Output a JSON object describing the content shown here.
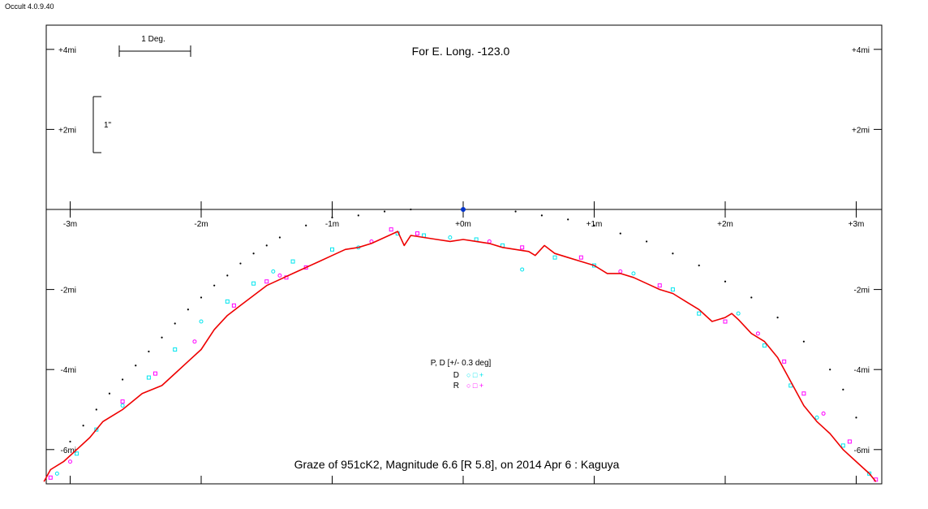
{
  "app": {
    "title": "Occult 4.0.9.40"
  },
  "chart_data": {
    "type": "line",
    "title": "Graze of  951cK2,  Magnitude 6.6 [R 5.8],  on 2014 Apr  6  :  Kaguya",
    "subtitle": "For E. Long. -123.0",
    "scale_bars": {
      "angle": "1 Deg.",
      "arcsec": "1\""
    },
    "x_ticks": [
      {
        "v": -3,
        "label": "-3m"
      },
      {
        "v": -2,
        "label": "-2m"
      },
      {
        "v": -1,
        "label": "-1m"
      },
      {
        "v": 0,
        "label": "+0m"
      },
      {
        "v": 1,
        "label": "+1m"
      },
      {
        "v": 2,
        "label": "+2m"
      },
      {
        "v": 3,
        "label": "+3m"
      }
    ],
    "y_ticks": [
      {
        "v": 4,
        "label": "+4mi"
      },
      {
        "v": 2,
        "label": "+2mi"
      },
      {
        "v": -2,
        "label": "-2mi"
      },
      {
        "v": -4,
        "label": "-4mi"
      },
      {
        "v": -6,
        "label": "-6mi"
      }
    ],
    "xlim": [
      -3.2,
      3.2
    ],
    "ylim": [
      -6.8,
      4.6
    ],
    "star_position": [
      0,
      0
    ],
    "legend": {
      "title": "P, D [+/- 0.3 deg]",
      "entries": [
        {
          "label": "D",
          "symbols": "○ □ +",
          "color": "#00e5ee"
        },
        {
          "label": "R",
          "symbols": "○ □ +",
          "color": "#ff00ff"
        }
      ]
    },
    "colors": {
      "profile": "#ee0000",
      "star": "#0033cc",
      "D": "#00e5ee",
      "R": "#ff00ff"
    },
    "series": [
      {
        "type": "line",
        "data": [
          [
            -3.2,
            -6.8
          ],
          [
            -3.15,
            -6.5
          ],
          [
            -3.05,
            -6.3
          ],
          [
            -2.95,
            -6.0
          ],
          [
            -2.85,
            -5.7
          ],
          [
            -2.75,
            -5.3
          ],
          [
            -2.6,
            -5.0
          ],
          [
            -2.45,
            -4.6
          ],
          [
            -2.3,
            -4.4
          ],
          [
            -2.2,
            -4.1
          ],
          [
            -2.1,
            -3.8
          ],
          [
            -2.0,
            -3.5
          ],
          [
            -1.9,
            -3.0
          ],
          [
            -1.8,
            -2.65
          ],
          [
            -1.7,
            -2.4
          ],
          [
            -1.6,
            -2.15
          ],
          [
            -1.5,
            -1.9
          ],
          [
            -1.4,
            -1.75
          ],
          [
            -1.3,
            -1.6
          ],
          [
            -1.2,
            -1.45
          ],
          [
            -1.1,
            -1.3
          ],
          [
            -1.0,
            -1.15
          ],
          [
            -0.9,
            -1.0
          ],
          [
            -0.8,
            -0.95
          ],
          [
            -0.7,
            -0.85
          ],
          [
            -0.6,
            -0.7
          ],
          [
            -0.5,
            -0.55
          ],
          [
            -0.45,
            -0.9
          ],
          [
            -0.4,
            -0.65
          ],
          [
            -0.3,
            -0.7
          ],
          [
            -0.2,
            -0.75
          ],
          [
            -0.1,
            -0.8
          ],
          [
            0.0,
            -0.75
          ],
          [
            0.1,
            -0.8
          ],
          [
            0.2,
            -0.85
          ],
          [
            0.3,
            -0.95
          ],
          [
            0.4,
            -1.0
          ],
          [
            0.5,
            -1.05
          ],
          [
            0.55,
            -1.15
          ],
          [
            0.62,
            -0.9
          ],
          [
            0.7,
            -1.1
          ],
          [
            0.8,
            -1.2
          ],
          [
            0.9,
            -1.3
          ],
          [
            1.0,
            -1.4
          ],
          [
            1.1,
            -1.6
          ],
          [
            1.2,
            -1.6
          ],
          [
            1.3,
            -1.7
          ],
          [
            1.4,
            -1.85
          ],
          [
            1.5,
            -2.0
          ],
          [
            1.6,
            -2.1
          ],
          [
            1.7,
            -2.3
          ],
          [
            1.8,
            -2.5
          ],
          [
            1.9,
            -2.8
          ],
          [
            2.0,
            -2.7
          ],
          [
            2.05,
            -2.6
          ],
          [
            2.1,
            -2.75
          ],
          [
            2.2,
            -3.1
          ],
          [
            2.3,
            -3.3
          ],
          [
            2.4,
            -3.7
          ],
          [
            2.5,
            -4.3
          ],
          [
            2.6,
            -4.9
          ],
          [
            2.7,
            -5.3
          ],
          [
            2.8,
            -5.6
          ],
          [
            2.9,
            -6.0
          ],
          [
            3.0,
            -6.3
          ],
          [
            3.1,
            -6.6
          ],
          [
            3.15,
            -6.8
          ]
        ]
      },
      {
        "type": "scatter",
        "name": "limb_dots",
        "data": [
          [
            -3.0,
            -5.8
          ],
          [
            -2.9,
            -5.4
          ],
          [
            -2.8,
            -5.0
          ],
          [
            -2.7,
            -4.6
          ],
          [
            -2.6,
            -4.25
          ],
          [
            -2.5,
            -3.9
          ],
          [
            -2.4,
            -3.55
          ],
          [
            -2.3,
            -3.2
          ],
          [
            -2.2,
            -2.85
          ],
          [
            -2.1,
            -2.5
          ],
          [
            -2.0,
            -2.2
          ],
          [
            -1.9,
            -1.9
          ],
          [
            -1.8,
            -1.65
          ],
          [
            -1.7,
            -1.35
          ],
          [
            -1.6,
            -1.1
          ],
          [
            -1.5,
            -0.9
          ],
          [
            -1.4,
            -0.7
          ],
          [
            -1.2,
            -0.4
          ],
          [
            -1.0,
            -0.2
          ],
          [
            -0.8,
            -0.15
          ],
          [
            -0.6,
            -0.05
          ],
          [
            -0.4,
            0.0
          ],
          [
            0.4,
            -0.05
          ],
          [
            0.6,
            -0.15
          ],
          [
            0.8,
            -0.25
          ],
          [
            1.0,
            -0.4
          ],
          [
            1.2,
            -0.6
          ],
          [
            1.4,
            -0.8
          ],
          [
            1.6,
            -1.1
          ],
          [
            1.8,
            -1.4
          ],
          [
            2.0,
            -1.8
          ],
          [
            2.2,
            -2.2
          ],
          [
            2.4,
            -2.7
          ],
          [
            2.6,
            -3.3
          ],
          [
            2.8,
            -4.0
          ],
          [
            2.9,
            -4.5
          ],
          [
            3.0,
            -5.2
          ]
        ]
      },
      {
        "type": "scatter",
        "name": "D",
        "data": [
          [
            -3.1,
            -6.6
          ],
          [
            -2.95,
            -6.1
          ],
          [
            -2.8,
            -5.5
          ],
          [
            -2.6,
            -4.9
          ],
          [
            -2.4,
            -4.2
          ],
          [
            -2.2,
            -3.5
          ],
          [
            -2.0,
            -2.8
          ],
          [
            -1.8,
            -2.3
          ],
          [
            -1.6,
            -1.85
          ],
          [
            -1.45,
            -1.55
          ],
          [
            -1.3,
            -1.3
          ],
          [
            -1.0,
            -1.0
          ],
          [
            -0.8,
            -0.95
          ],
          [
            -0.5,
            -0.6
          ],
          [
            -0.3,
            -0.65
          ],
          [
            -0.1,
            -0.7
          ],
          [
            0.1,
            -0.75
          ],
          [
            0.3,
            -0.9
          ],
          [
            0.45,
            -1.5
          ],
          [
            0.7,
            -1.2
          ],
          [
            1.0,
            -1.4
          ],
          [
            1.3,
            -1.6
          ],
          [
            1.6,
            -2.0
          ],
          [
            1.8,
            -2.6
          ],
          [
            2.1,
            -2.6
          ],
          [
            2.3,
            -3.4
          ],
          [
            2.5,
            -4.4
          ],
          [
            2.7,
            -5.2
          ],
          [
            2.9,
            -5.9
          ],
          [
            3.1,
            -6.6
          ]
        ]
      },
      {
        "type": "scatter",
        "name": "R",
        "data": [
          [
            -3.15,
            -6.7
          ],
          [
            -3.0,
            -6.3
          ],
          [
            -2.6,
            -4.8
          ],
          [
            -2.35,
            -4.1
          ],
          [
            -2.05,
            -3.3
          ],
          [
            -1.75,
            -2.4
          ],
          [
            -1.5,
            -1.8
          ],
          [
            -1.4,
            -1.65
          ],
          [
            -1.35,
            -1.7
          ],
          [
            -1.2,
            -1.45
          ],
          [
            -0.7,
            -0.8
          ],
          [
            -0.55,
            -0.5
          ],
          [
            -0.35,
            -0.6
          ],
          [
            0.2,
            -0.8
          ],
          [
            0.45,
            -0.95
          ],
          [
            0.9,
            -1.2
          ],
          [
            1.2,
            -1.55
          ],
          [
            1.5,
            -1.9
          ],
          [
            2.0,
            -2.8
          ],
          [
            2.25,
            -3.1
          ],
          [
            2.45,
            -3.8
          ],
          [
            2.6,
            -4.6
          ],
          [
            2.75,
            -5.1
          ],
          [
            2.95,
            -5.8
          ],
          [
            3.15,
            -6.75
          ]
        ]
      }
    ]
  }
}
